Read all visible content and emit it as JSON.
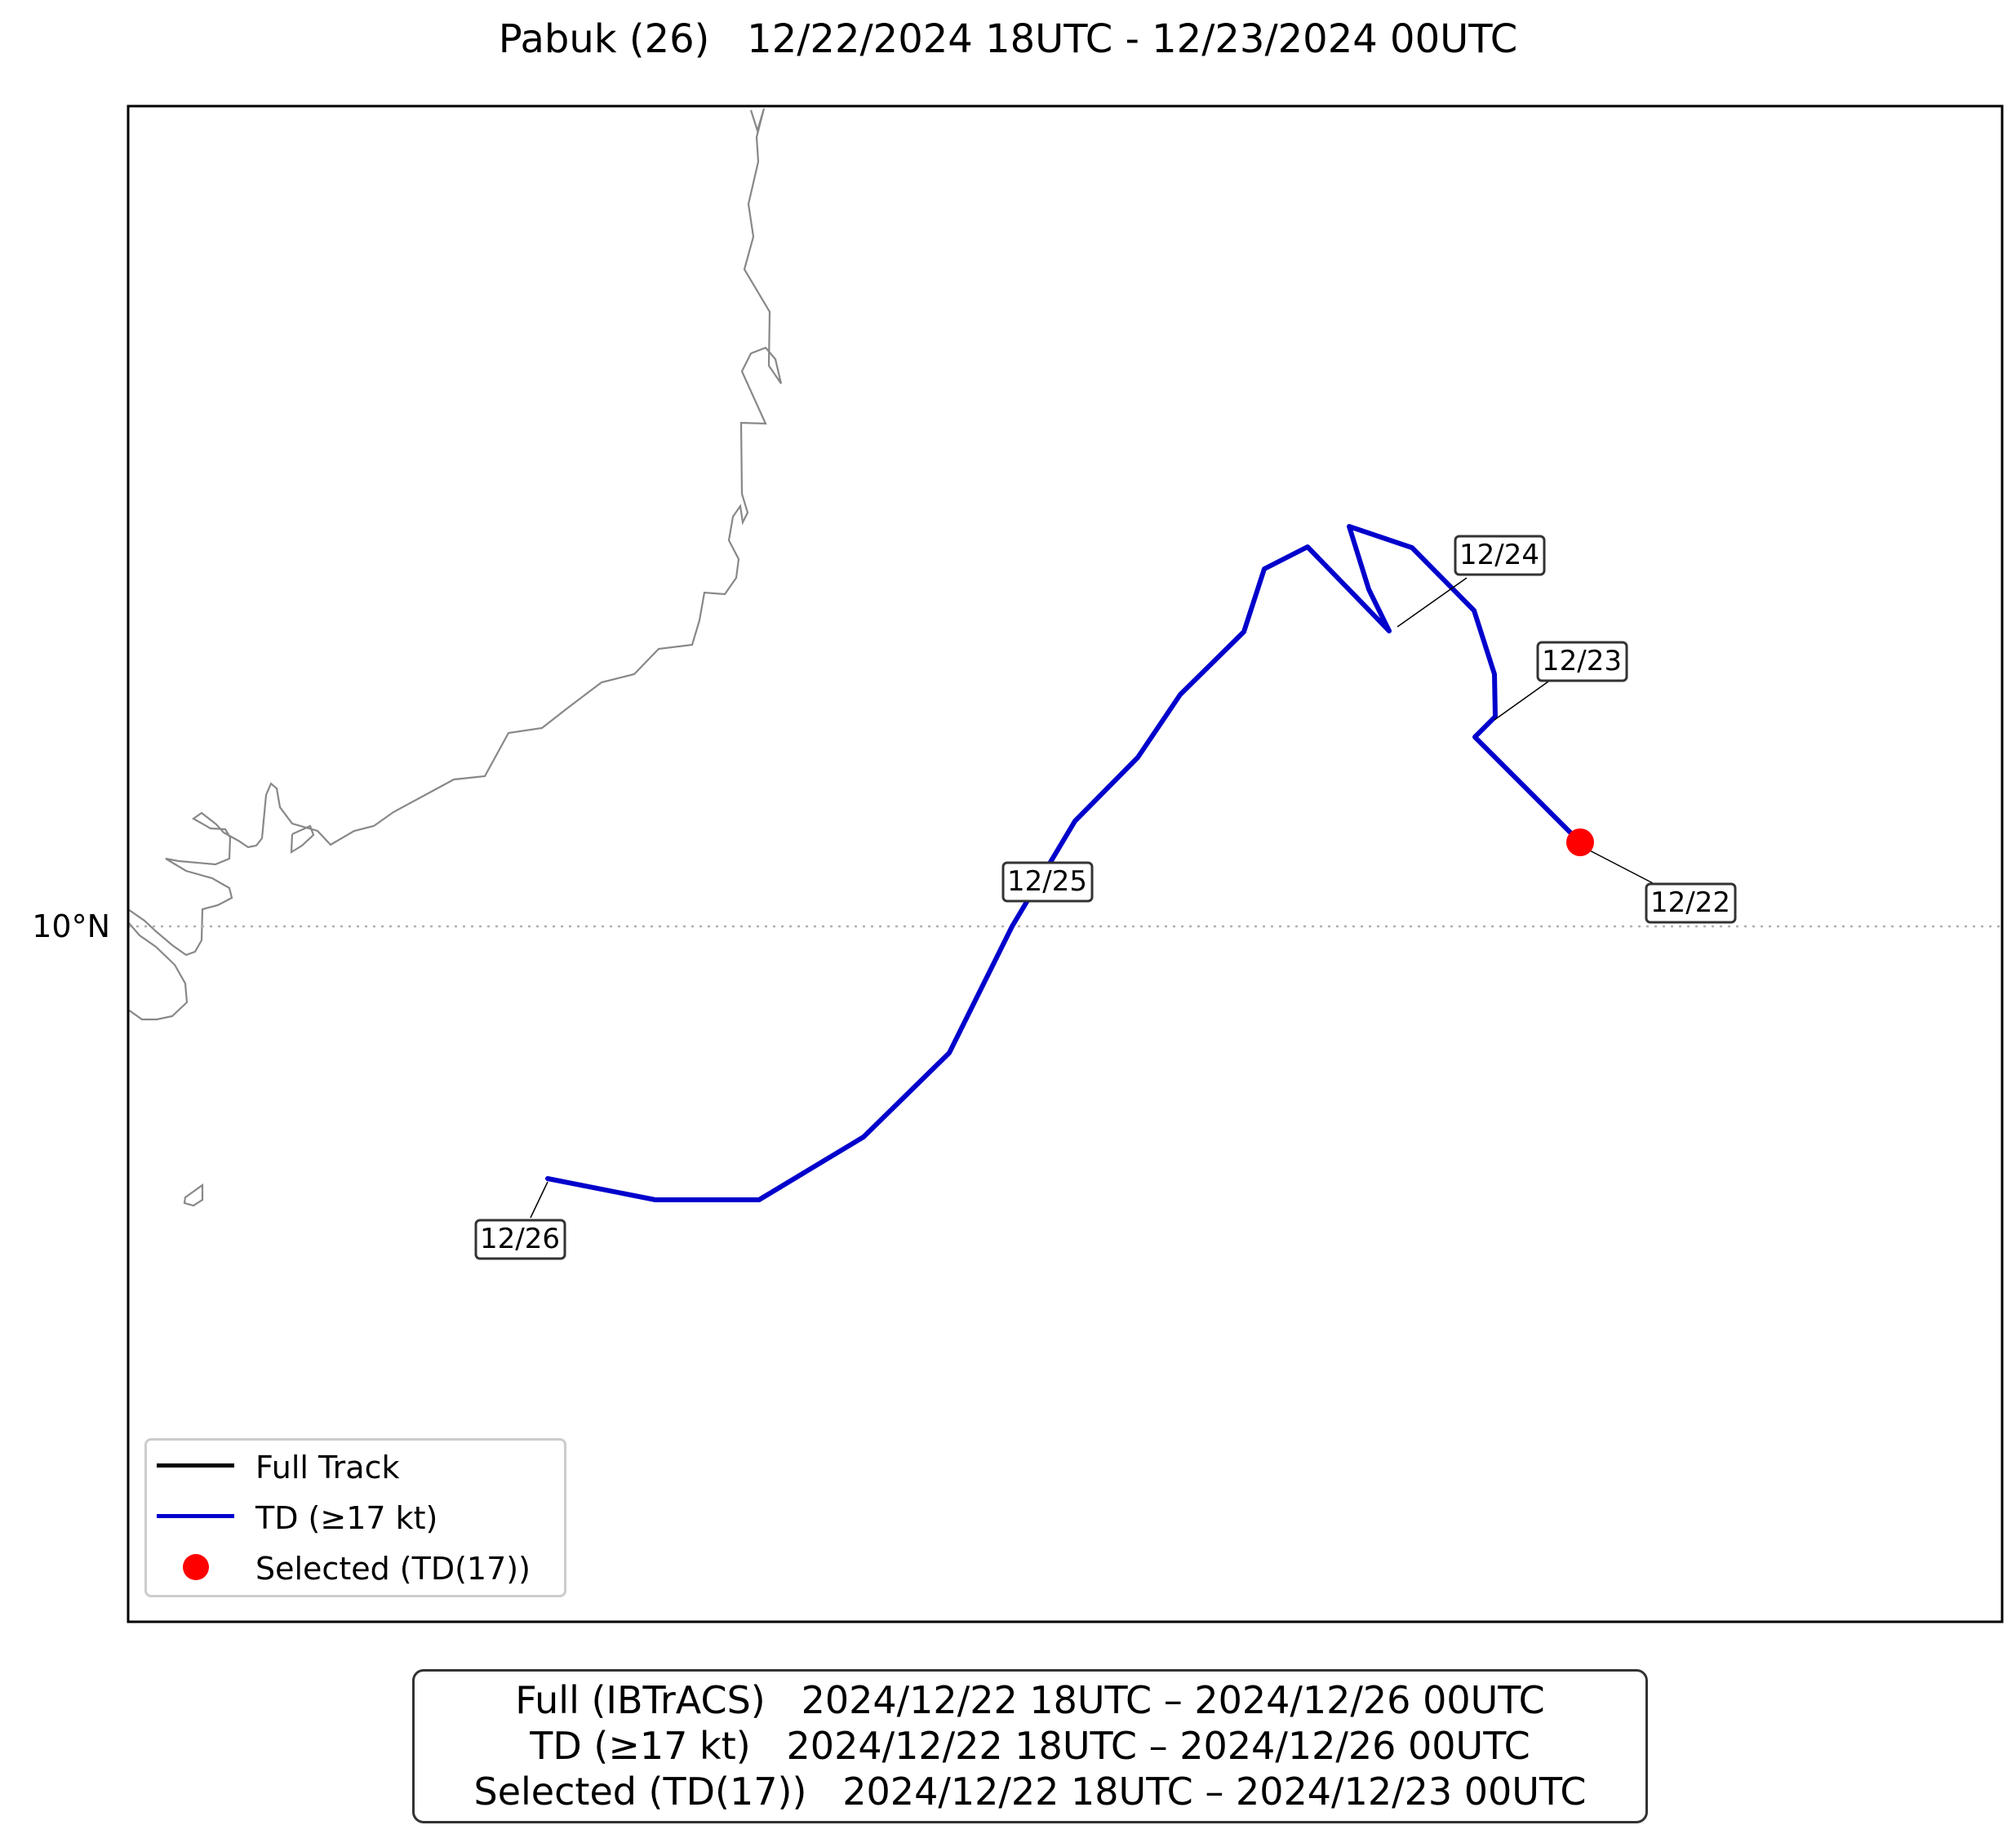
{
  "title": "Pabuk (26)   12/22/2024 18UTC - 12/23/2024 00UTC",
  "map": {
    "lat_gridline_label": "10°N",
    "coastline_color": "#888888",
    "gridline_color": "#b0b0b0",
    "frame_color": "#000000"
  },
  "track": {
    "td_color": "#0000cc",
    "selected_color": "#ff0000",
    "date_labels": [
      "12/22",
      "12/23",
      "12/24",
      "12/25",
      "12/26"
    ]
  },
  "legend": {
    "items": [
      {
        "label": "Full Track",
        "color": "#000000",
        "kind": "line"
      },
      {
        "label": "TD (≥17 kt)",
        "color": "#0000cc",
        "kind": "line"
      },
      {
        "label": "Selected (TD(17))",
        "color": "#ff0000",
        "kind": "dot"
      }
    ]
  },
  "summary": {
    "lines": [
      "Full (IBTrACS)   2024/12/22 18UTC – 2024/12/26 00UTC",
      "TD (≥17 kt)   2024/12/22 18UTC – 2024/12/26 00UTC",
      "Selected (TD(17))   2024/12/22 18UTC – 2024/12/23 00UTC"
    ]
  }
}
